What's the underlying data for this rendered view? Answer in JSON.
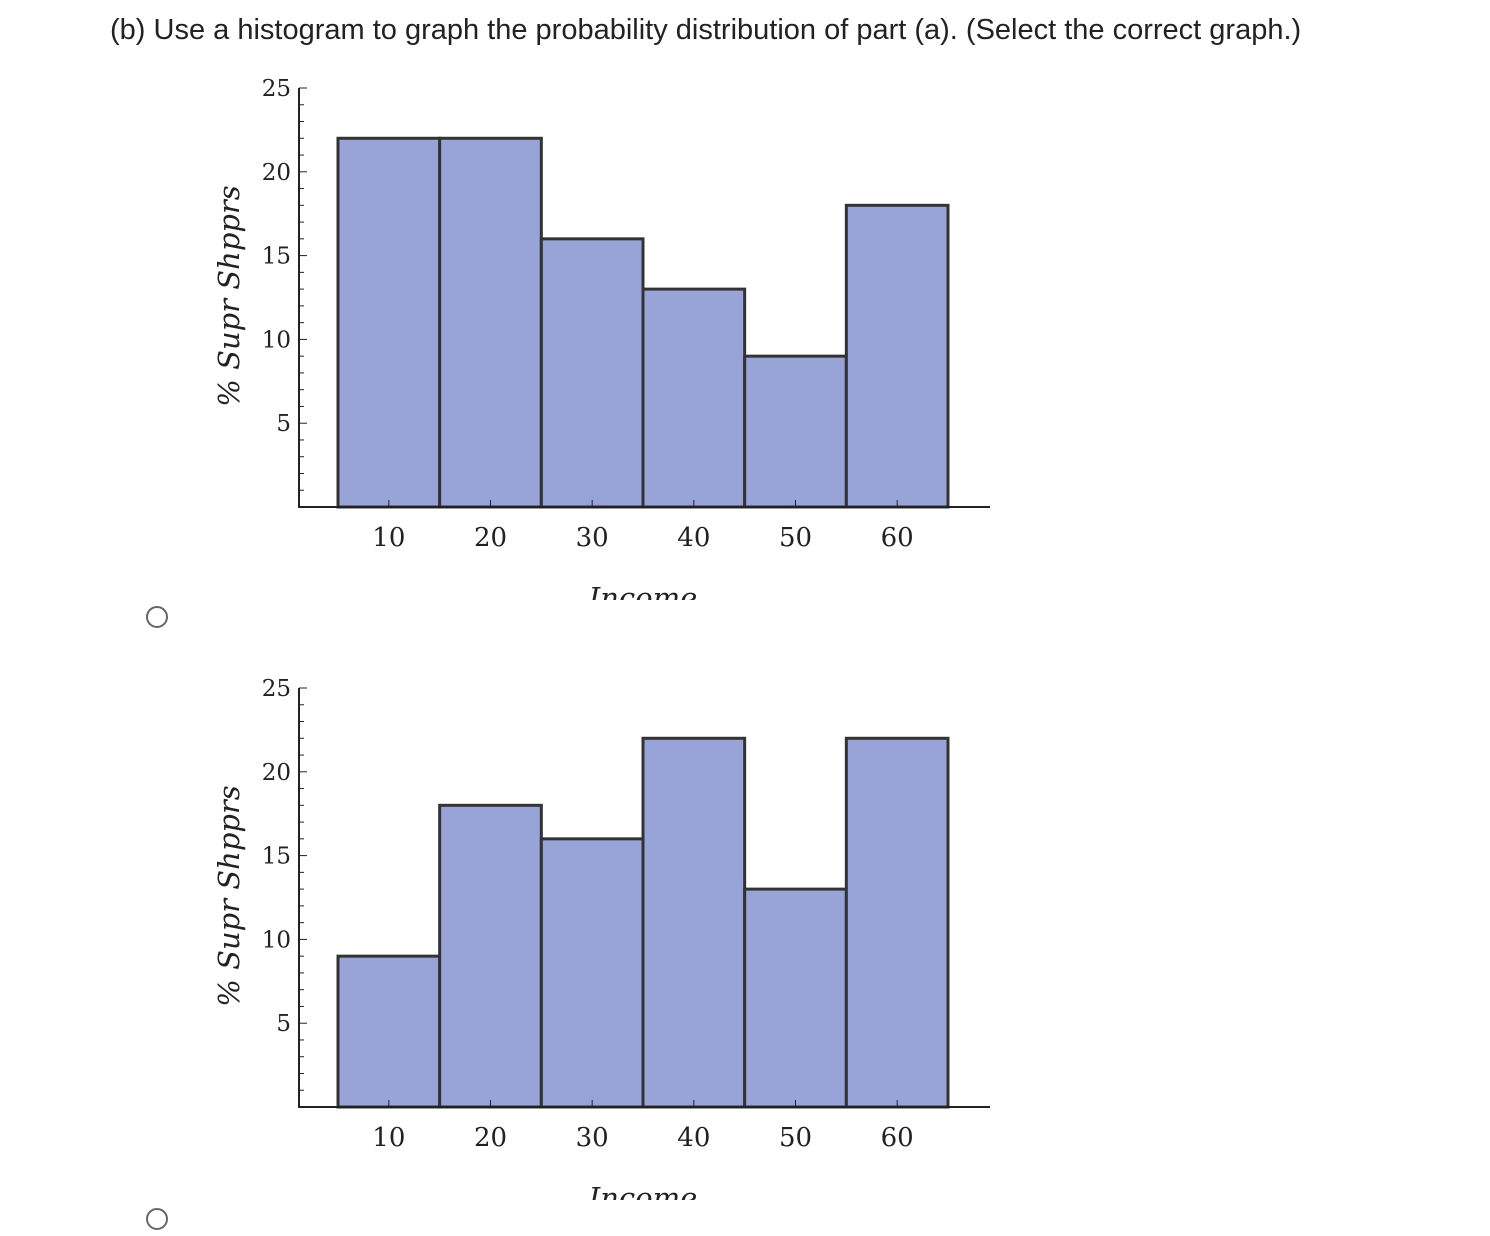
{
  "question": {
    "text": "(b) Use a histogram to graph the probability distribution of part (a). (Select the correct graph.)"
  },
  "options": [
    {
      "label": "option-1",
      "chart_data": {
        "type": "bar",
        "title": "",
        "categories": [
          10,
          20,
          30,
          40,
          50,
          60
        ],
        "values": [
          22,
          22,
          16,
          13,
          9,
          18
        ],
        "xlabel": "Income",
        "ylabel": "% Supr Shpprs",
        "xticks": [
          "10",
          "20",
          "30",
          "40",
          "50",
          "60"
        ],
        "yticks": [
          "5",
          "10",
          "15",
          "20",
          "25"
        ],
        "ylim": [
          0,
          25
        ],
        "xlim": [
          5,
          65
        ],
        "bar_color": "#98a3d8",
        "edge_color": "#333333"
      }
    },
    {
      "label": "option-2",
      "chart_data": {
        "type": "bar",
        "title": "",
        "categories": [
          10,
          20,
          30,
          40,
          50,
          60
        ],
        "values": [
          9,
          18,
          16,
          22,
          13,
          22
        ],
        "xlabel": "Income",
        "ylabel": "% Supr Shpprs",
        "xticks": [
          "10",
          "20",
          "30",
          "40",
          "50",
          "60"
        ],
        "yticks": [
          "5",
          "10",
          "15",
          "20",
          "25"
        ],
        "ylim": [
          0,
          25
        ],
        "xlim": [
          5,
          65
        ],
        "bar_color": "#98a3d8",
        "edge_color": "#333333"
      }
    }
  ]
}
